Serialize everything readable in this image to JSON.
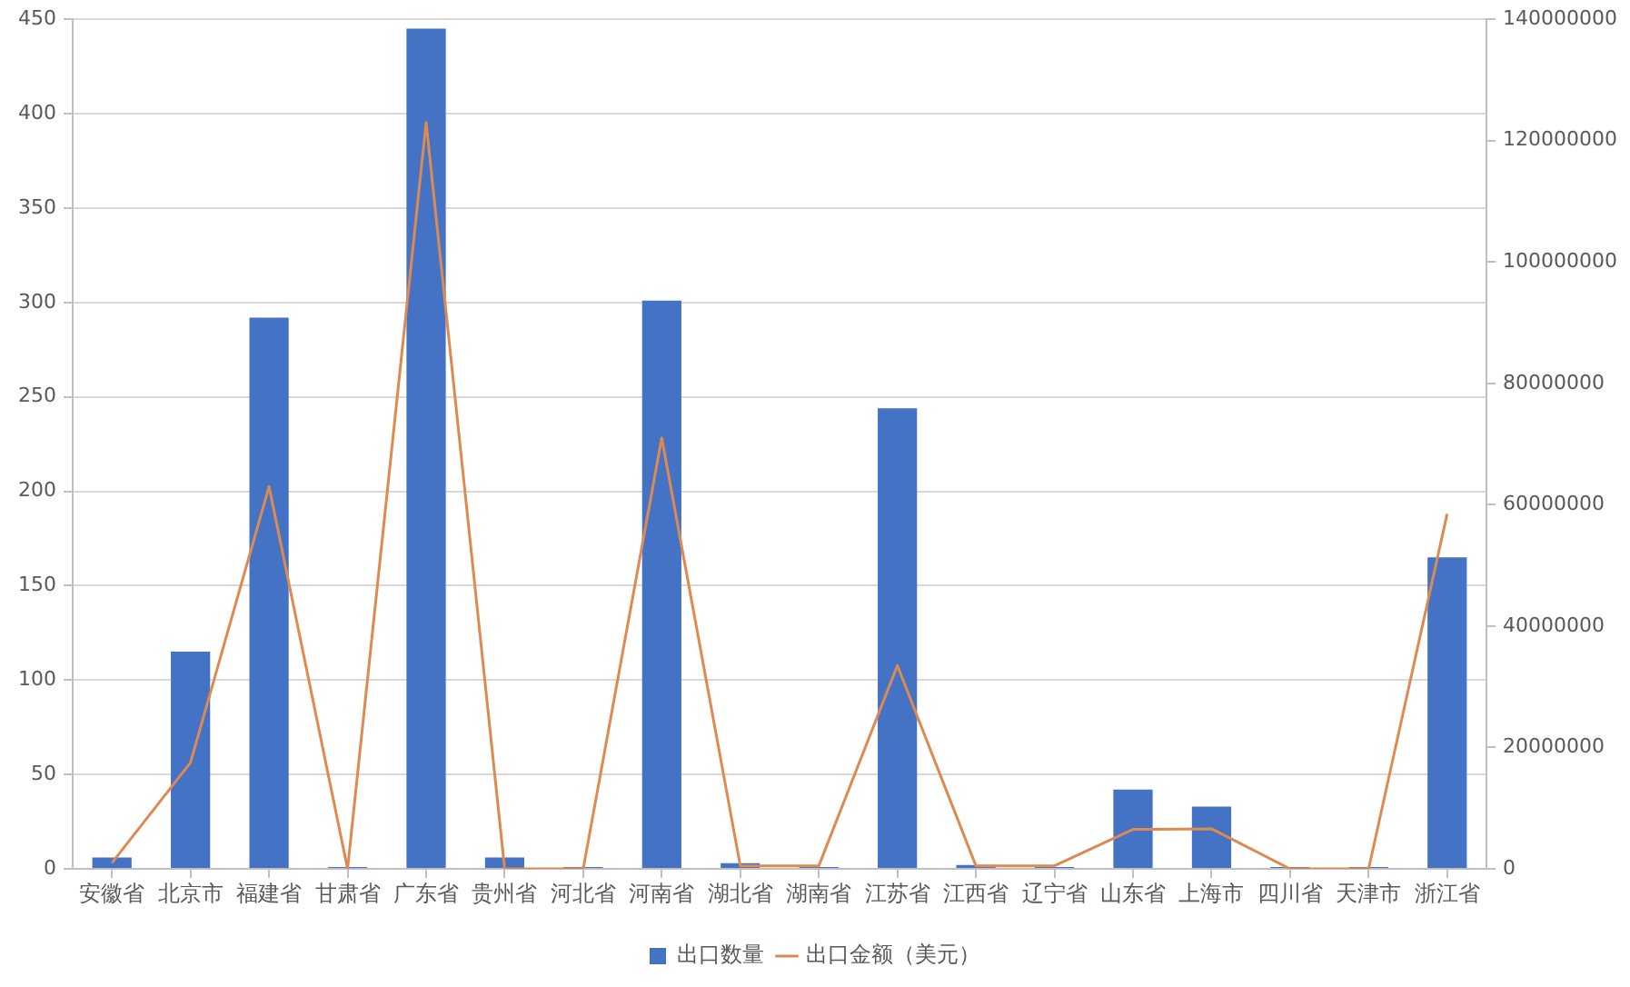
{
  "chart_data": {
    "type": "bar",
    "categories": [
      "安徽省",
      "北京市",
      "福建省",
      "甘肃省",
      "广东省",
      "贵州省",
      "河北省",
      "河南省",
      "湖北省",
      "湖南省",
      "江苏省",
      "江西省",
      "辽宁省",
      "山东省",
      "上海市",
      "四川省",
      "天津市",
      "浙江省"
    ],
    "series": [
      {
        "name": "出口数量",
        "color": "#4472c4",
        "values": [
          6,
          115,
          292,
          1,
          445,
          6,
          1,
          301,
          3,
          1,
          244,
          2,
          1,
          42,
          33,
          1,
          1,
          165
        ]
      },
      {
        "name": "出口金额（美元）",
        "type": "line",
        "axis": "y2",
        "color": "#dd8a52",
        "values": [
          1000000,
          17500000,
          63000000,
          0,
          123000000,
          0,
          0,
          71000000,
          500000,
          500000,
          33500000,
          500000,
          500000,
          6500000,
          6600000,
          0,
          0,
          58500000
        ]
      }
    ],
    "ylim": [
      0,
      450
    ],
    "yticks": [
      0,
      50,
      100,
      150,
      200,
      250,
      300,
      350,
      400,
      450
    ],
    "y2lim": [
      0,
      140000000
    ],
    "y2ticks": [
      0,
      20000000,
      40000000,
      60000000,
      80000000,
      100000000,
      120000000,
      140000000
    ],
    "grid": "y",
    "legend": "bottom",
    "marker": "none"
  }
}
